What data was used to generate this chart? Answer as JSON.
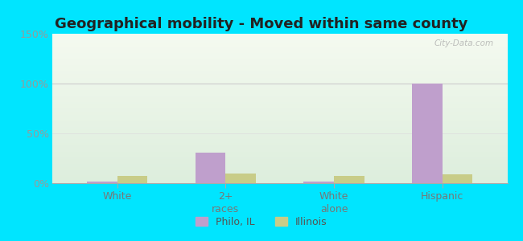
{
  "title": "Geographical mobility - Moved within same county",
  "categories": [
    "White",
    "2+\nraces",
    "White\nalone",
    "Hispanic"
  ],
  "philo_values": [
    2,
    31,
    2,
    100
  ],
  "illinois_values": [
    7,
    10,
    7,
    9
  ],
  "philo_color": "#bf9fcc",
  "illinois_color": "#c8cc88",
  "bar_width": 0.28,
  "ylim": [
    0,
    150
  ],
  "yticks": [
    0,
    50,
    100,
    150
  ],
  "ytick_labels": [
    "0%",
    "50%",
    "100%",
    "150%"
  ],
  "bg_top_color": "#f5faf0",
  "bg_bottom_color": "#ddeedd",
  "outer_background": "#00e5ff",
  "legend_labels": [
    "Philo, IL",
    "Illinois"
  ],
  "watermark": "City-Data.com",
  "title_fontsize": 13,
  "axis_label_fontsize": 9,
  "legend_fontsize": 9,
  "tick_color": "#999999",
  "title_color": "#222222"
}
